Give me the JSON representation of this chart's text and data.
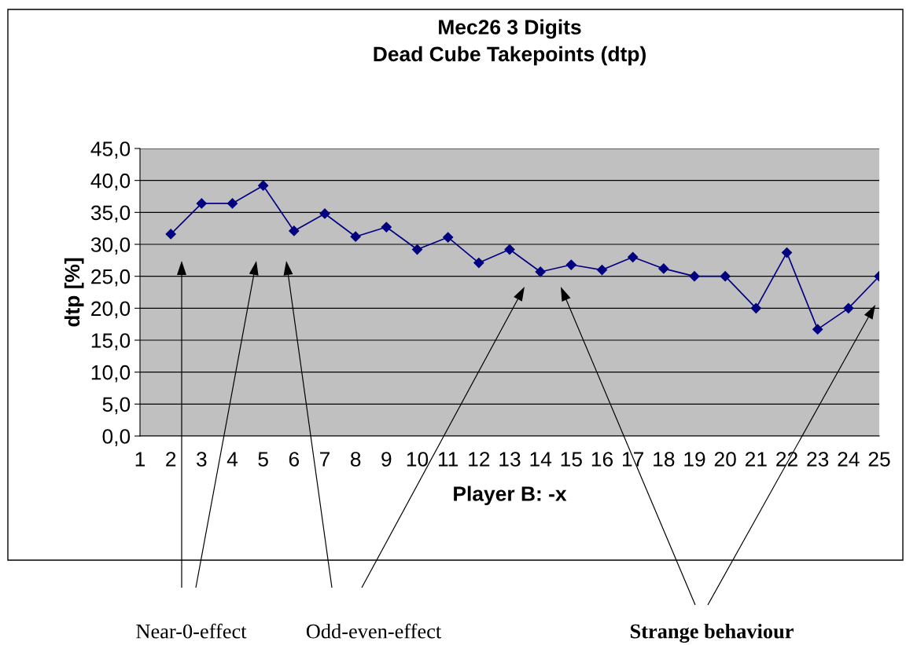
{
  "chart_data": {
    "type": "line",
    "title": "Mec26 3 Digits\nDead Cube Takepoints (dtp)",
    "xlabel": "Player B: -x",
    "ylabel": "dtp [%]",
    "x": [
      2,
      3,
      4,
      5,
      6,
      7,
      8,
      9,
      10,
      11,
      12,
      13,
      14,
      15,
      16,
      17,
      18,
      19,
      20,
      21,
      22,
      23,
      24,
      25
    ],
    "series": [
      {
        "color": "#000080",
        "values": [
          31.6,
          36.4,
          36.4,
          39.2,
          32.1,
          34.8,
          31.2,
          32.7,
          29.2,
          31.1,
          27.1,
          29.2,
          25.7,
          26.8,
          26.0,
          28.0,
          26.2,
          25.0,
          25.0,
          20.0,
          28.7,
          16.7,
          20.0,
          25.0
        ]
      }
    ],
    "xlim": [
      1,
      25
    ],
    "xticks": [
      1,
      2,
      3,
      4,
      5,
      6,
      7,
      8,
      9,
      10,
      11,
      12,
      13,
      14,
      15,
      16,
      17,
      18,
      19,
      20,
      21,
      22,
      23,
      24,
      25
    ],
    "ylim": [
      0,
      45
    ],
    "yticks": [
      {
        "value": 0,
        "label": "0,0"
      },
      {
        "value": 5,
        "label": "5,0"
      },
      {
        "value": 10,
        "label": "10,0"
      },
      {
        "value": 15,
        "label": "15,0"
      },
      {
        "value": 20,
        "label": "20,0"
      },
      {
        "value": 25,
        "label": "25,0"
      },
      {
        "value": 30,
        "label": "30,0"
      },
      {
        "value": 35,
        "label": "35,0"
      },
      {
        "value": 40,
        "label": "40,0"
      },
      {
        "value": 45,
        "label": "45,0"
      }
    ],
    "grid": "y",
    "legend": false,
    "marker": "diamond",
    "line_style": "solid",
    "annotations": [
      "Near-0-effect",
      "Odd-even-effect",
      "Strange behaviour"
    ]
  }
}
